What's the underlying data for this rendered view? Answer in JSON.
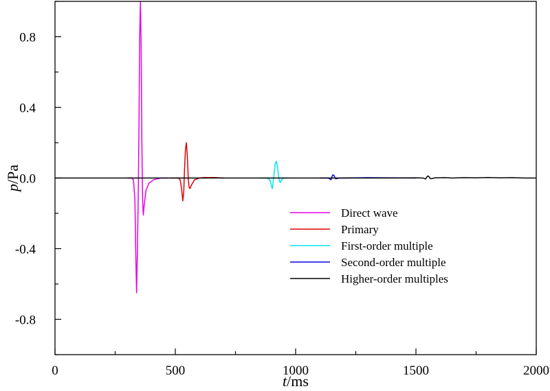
{
  "chart_data": {
    "type": "line",
    "xlabel": {
      "italic": "t",
      "rest": "/ms"
    },
    "ylabel": {
      "italic": "p",
      "rest": "/Pa"
    },
    "xlim": [
      0,
      2000
    ],
    "ylim": [
      -1.0,
      1.0
    ],
    "x_ticks": [
      0,
      500,
      1000,
      1500,
      2000
    ],
    "x_tick_labels": [
      "0",
      "500",
      "1000",
      "1500",
      "2000"
    ],
    "y_ticks": [
      -0.8,
      -0.4,
      0.0,
      0.4,
      0.8
    ],
    "y_tick_labels": [
      "-0.8",
      "-0.4",
      "0.0",
      "0.4",
      "0.8"
    ],
    "grid": false,
    "legend_position": "lower-right",
    "series": [
      {
        "name": "Direct wave",
        "color": "#e600e6",
        "points": [
          [
            300,
            0
          ],
          [
            318,
            0
          ],
          [
            326,
            -0.01
          ],
          [
            332,
            -0.12
          ],
          [
            336,
            -0.45
          ],
          [
            339,
            -0.65
          ],
          [
            342,
            -0.45
          ],
          [
            346,
            -0.1
          ],
          [
            349,
            0.3
          ],
          [
            352,
            0.8
          ],
          [
            355,
            1.0
          ],
          [
            358,
            0.75
          ],
          [
            361,
            0.2
          ],
          [
            364,
            -0.12
          ],
          [
            367,
            -0.21
          ],
          [
            371,
            -0.15
          ],
          [
            378,
            -0.07
          ],
          [
            390,
            -0.03
          ],
          [
            410,
            -0.01
          ],
          [
            440,
            0
          ],
          [
            470,
            0
          ]
        ]
      },
      {
        "name": "Primary",
        "color": "#e00000",
        "points": [
          [
            480,
            0
          ],
          [
            512,
            0
          ],
          [
            520,
            -0.01
          ],
          [
            526,
            -0.06
          ],
          [
            531,
            -0.13
          ],
          [
            535,
            -0.08
          ],
          [
            538,
            0.04
          ],
          [
            542,
            0.16
          ],
          [
            546,
            0.2
          ],
          [
            550,
            0.12
          ],
          [
            554,
            -0.01
          ],
          [
            557,
            -0.05
          ],
          [
            561,
            -0.06
          ],
          [
            567,
            -0.04
          ],
          [
            580,
            -0.01
          ],
          [
            600,
            0
          ],
          [
            620,
            0.003
          ],
          [
            660,
            0.003
          ],
          [
            700,
            0
          ]
        ]
      },
      {
        "name": "First-order multiple",
        "color": "#00e5e5",
        "points": [
          [
            850,
            0
          ],
          [
            880,
            0
          ],
          [
            893,
            -0.01
          ],
          [
            899,
            -0.04
          ],
          [
            903,
            -0.06
          ],
          [
            906,
            -0.03
          ],
          [
            910,
            0.02
          ],
          [
            915,
            0.08
          ],
          [
            920,
            0.095
          ],
          [
            925,
            0.06
          ],
          [
            929,
            0.01
          ],
          [
            933,
            -0.02
          ],
          [
            937,
            -0.025
          ],
          [
            942,
            -0.01
          ],
          [
            950,
            0
          ],
          [
            970,
            0
          ]
        ]
      },
      {
        "name": "Second-order multiple",
        "color": "#0000e0",
        "points": [
          [
            1100,
            0
          ],
          [
            1135,
            0
          ],
          [
            1142,
            -0.005
          ],
          [
            1147,
            -0.01
          ],
          [
            1151,
            0.008
          ],
          [
            1155,
            0.018
          ],
          [
            1159,
            0.015
          ],
          [
            1163,
            0.003
          ],
          [
            1167,
            -0.005
          ],
          [
            1172,
            -0.003
          ],
          [
            1180,
            0
          ],
          [
            1210,
            0
          ],
          [
            1300,
            0.002
          ],
          [
            1400,
            0.001
          ],
          [
            1500,
            0
          ]
        ]
      },
      {
        "name": "Higher-order multiples",
        "color": "#000000",
        "points": [
          [
            0,
            0
          ],
          [
            500,
            0
          ],
          [
            1000,
            0
          ],
          [
            1400,
            0
          ],
          [
            1500,
            0.001
          ],
          [
            1530,
            0
          ],
          [
            1540,
            -0.006
          ],
          [
            1545,
            0.005
          ],
          [
            1550,
            0.012
          ],
          [
            1555,
            0.006
          ],
          [
            1560,
            -0.004
          ],
          [
            1567,
            -0.003
          ],
          [
            1580,
            0.001
          ],
          [
            1620,
            0.002
          ],
          [
            1650,
            0
          ],
          [
            1700,
            0.002
          ],
          [
            1750,
            0.001
          ],
          [
            1800,
            0.003
          ],
          [
            1850,
            0.001
          ],
          [
            1900,
            0.002
          ],
          [
            1950,
            0
          ],
          [
            2000,
            0
          ]
        ]
      }
    ]
  }
}
